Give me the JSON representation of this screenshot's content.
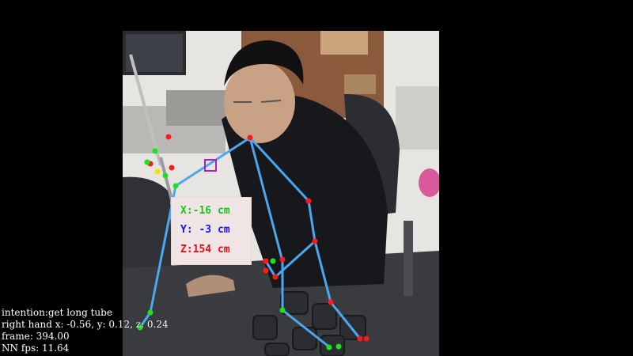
{
  "coordinates": {
    "x_label": "X:-16 cm",
    "y_label": "Y: -3 cm",
    "z_label": "Z:154 cm",
    "x_color": "#19c419",
    "y_color": "#1414ff",
    "z_color": "#e01010"
  },
  "status": {
    "intention": "intention:get long tube",
    "right_hand": "right hand x: -0.56, y: 0.12, z: 0.24",
    "frame": "frame: 394.00",
    "fps": "NN fps: 11.64"
  },
  "colors": {
    "skeleton_line": "#4aa8f0",
    "joint_red": "#ff1a1a",
    "joint_green": "#19e619",
    "joint_yellow": "#f0e600",
    "target_box": "#b01cc8"
  }
}
